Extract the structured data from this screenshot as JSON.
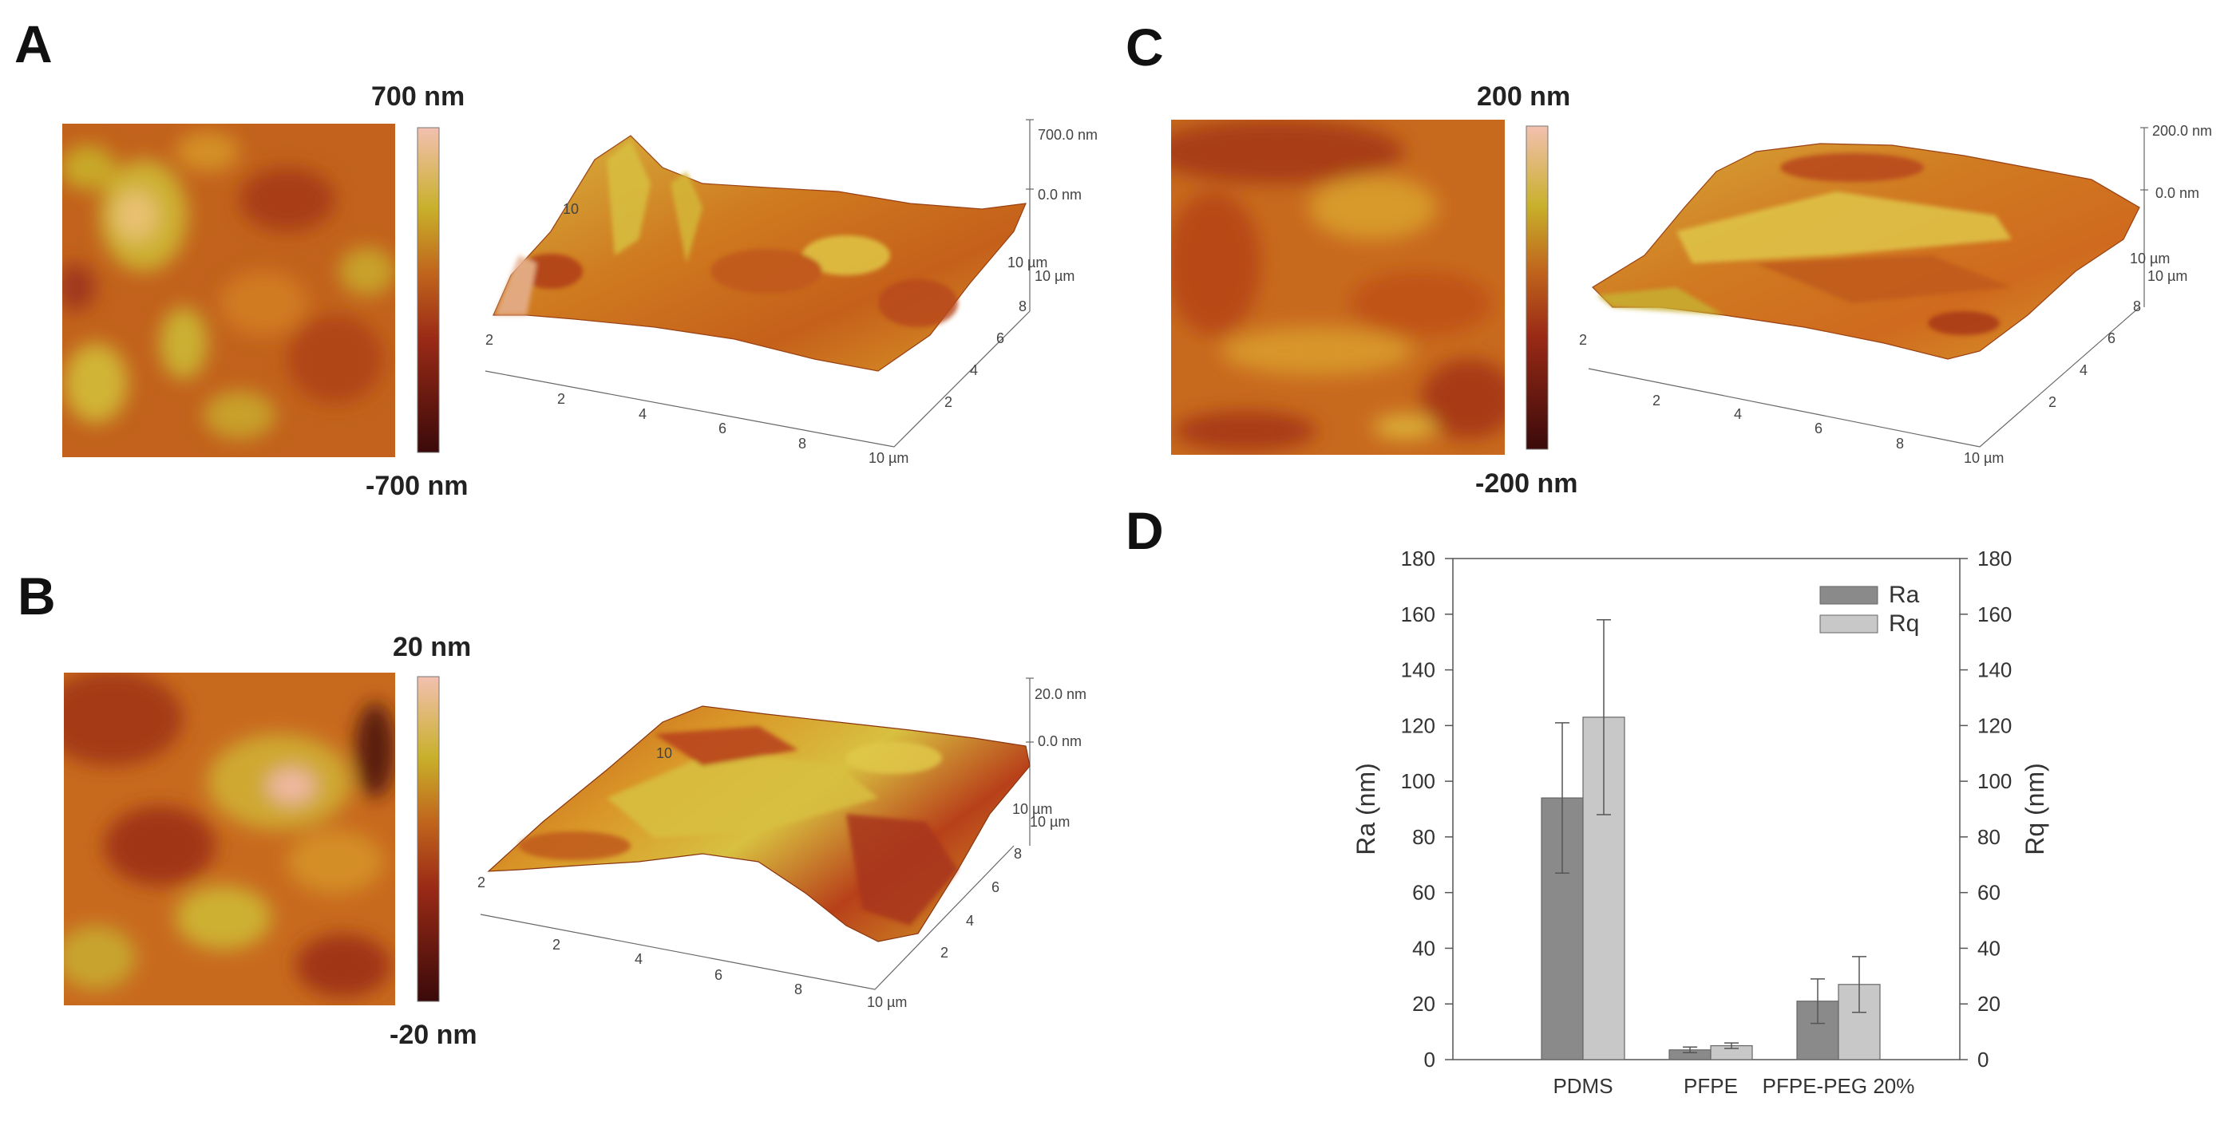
{
  "panels": {
    "A": {
      "letter": "A",
      "scale_max": "700 nm",
      "scale_min": "-700 nm",
      "z_top": "700.0 nm",
      "z_mid": "0.0 nm"
    },
    "B": {
      "letter": "B",
      "scale_max": "20 nm",
      "scale_min": "-20 nm",
      "z_top": "20.0 nm",
      "z_mid": "0.0 nm"
    },
    "C": {
      "letter": "C",
      "scale_max": "200 nm",
      "scale_min": "-200 nm",
      "z_top": "200.0 nm",
      "z_mid": "0.0 nm"
    },
    "D": {
      "letter": "D"
    }
  },
  "axis3d": {
    "x_ticks": [
      "2",
      "4",
      "6",
      "8",
      "10 µm"
    ],
    "y_ticks": [
      "2",
      "4",
      "6",
      "8",
      "10 µm"
    ],
    "z_base": "10 µm",
    "side_tick": "2",
    "back_tick": "10"
  },
  "colors": {
    "afm_dark": "#3a0a0a",
    "afm_mid": "#b84a14",
    "afm_orange": "#d0781c",
    "afm_yellow": "#cbb328",
    "afm_light": "#f1b9a6",
    "bar_ra": "#8a8a8a",
    "bar_rq": "#c8c8c8"
  },
  "chart_data": {
    "type": "bar",
    "categories": [
      "PDMS",
      "PFPE",
      "PFPE-PEG 20%"
    ],
    "series": [
      {
        "name": "Ra",
        "values": [
          94,
          3.5,
          21
        ],
        "errors": [
          27,
          1,
          8
        ]
      },
      {
        "name": "Rq",
        "values": [
          123,
          5,
          27
        ],
        "errors": [
          35,
          1,
          10
        ]
      }
    ],
    "ylim": [
      0,
      180
    ],
    "yticks": [
      "0",
      "20",
      "40",
      "60",
      "80",
      "100",
      "120",
      "140",
      "160",
      "180"
    ],
    "y2ticks": [
      "0",
      "20",
      "40",
      "60",
      "80",
      "100",
      "120",
      "140",
      "160",
      "180"
    ],
    "ylabel": "Ra (nm)",
    "y2label": "Rq (nm)",
    "legend_position": "top-right"
  }
}
